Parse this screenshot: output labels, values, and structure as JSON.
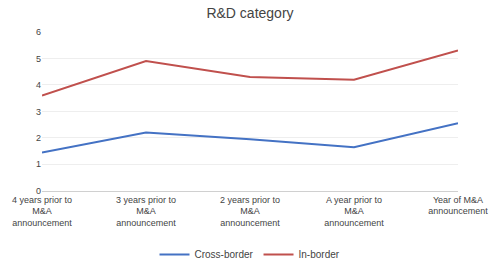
{
  "chart_data": {
    "type": "line",
    "title": "R&D category",
    "categories": [
      "4 years prior to\nM&A\nannouncement",
      "3 years prior to\nM&A\nannouncement",
      "2 years prior to\nM&A\nannouncement",
      "A year prior to\nM&A\nannouncement",
      "Year of M&A\nannouncement"
    ],
    "series": [
      {
        "name": "Cross-border",
        "color": "#4472C4",
        "values": [
          1.45,
          2.2,
          1.95,
          1.65,
          2.55
        ]
      },
      {
        "name": "In-border",
        "color": "#C0504D",
        "values": [
          3.6,
          4.9,
          4.3,
          4.2,
          5.3
        ]
      }
    ],
    "ylim": [
      0,
      6
    ],
    "yticks": [
      0,
      1,
      2,
      3,
      4,
      5,
      6
    ],
    "grid": true,
    "legend": "bottom"
  }
}
